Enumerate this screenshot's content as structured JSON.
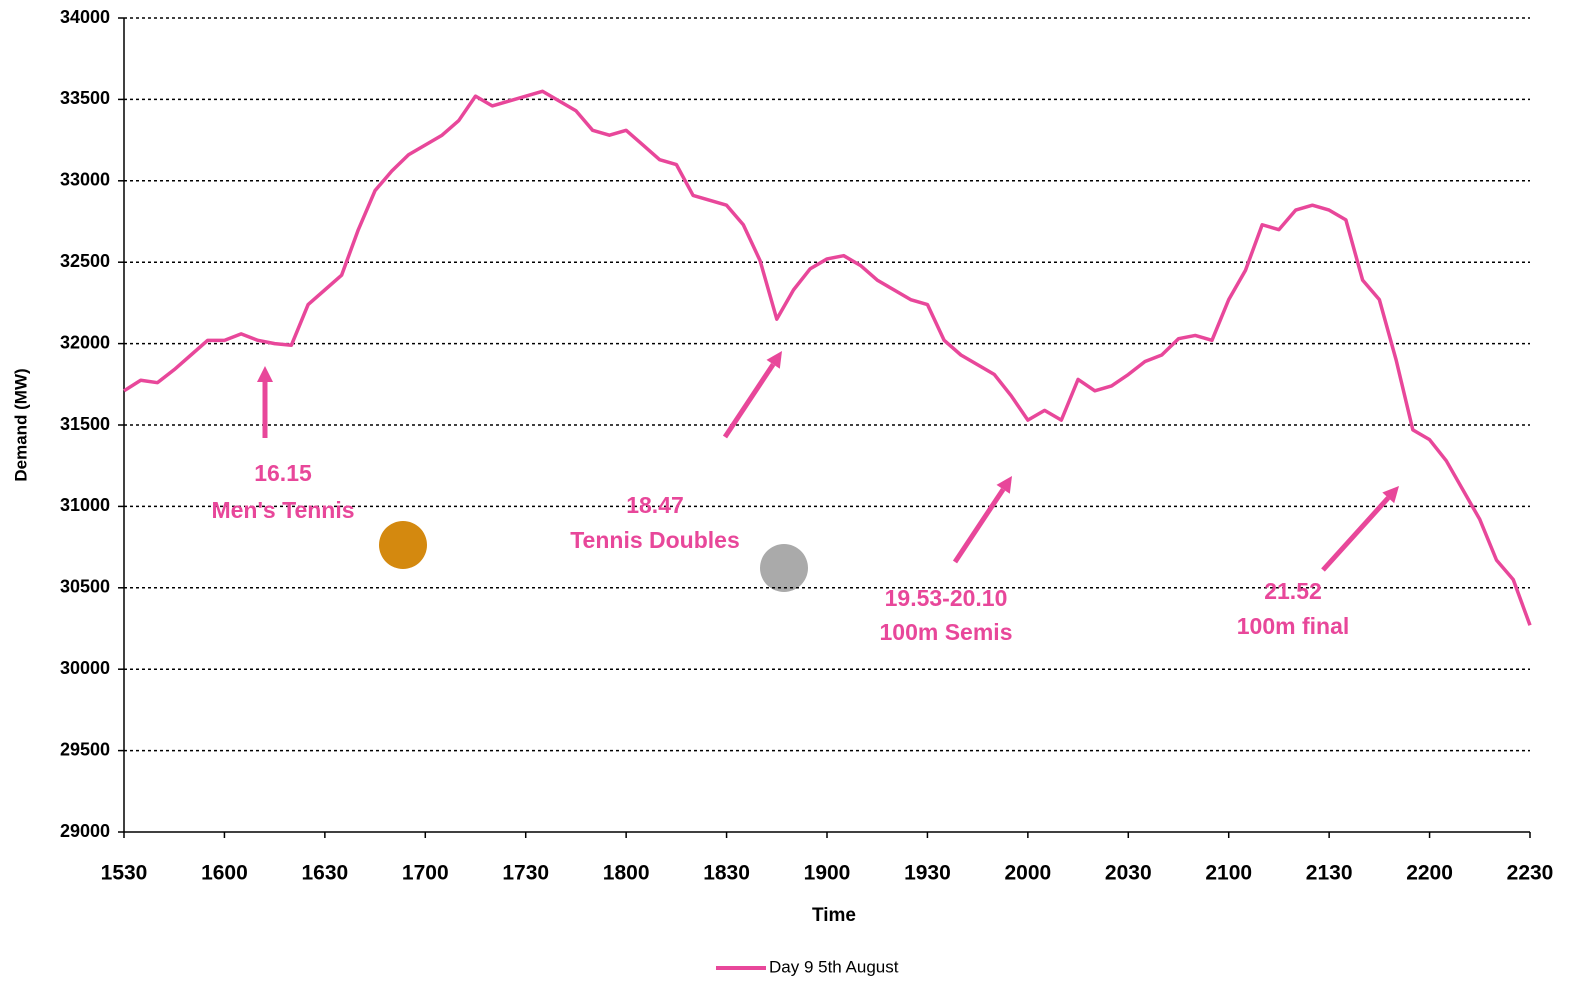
{
  "chart_data": {
    "type": "line",
    "x_label": "Time",
    "y_label": "Demand (MW)",
    "x": [
      930,
      935,
      940,
      945,
      950,
      955,
      960,
      965,
      970,
      975,
      980,
      985,
      990,
      995,
      1000,
      1005,
      1010,
      1015,
      1020,
      1025,
      1030,
      1035,
      1040,
      1045,
      1050,
      1055,
      1060,
      1065,
      1070,
      1075,
      1080,
      1085,
      1090,
      1095,
      1100,
      1105,
      1110,
      1115,
      1120,
      1125,
      1130,
      1135,
      1140,
      1145,
      1150,
      1155,
      1160,
      1165,
      1170,
      1175,
      1180,
      1185,
      1190,
      1195,
      1200,
      1205,
      1210,
      1215,
      1220,
      1225,
      1230,
      1235,
      1240,
      1245,
      1250,
      1255,
      1260,
      1265,
      1270,
      1275,
      1280,
      1285,
      1290,
      1295,
      1300,
      1305,
      1310,
      1315,
      1320,
      1325,
      1330,
      1335,
      1340,
      1345,
      1350
    ],
    "series": [
      {
        "name": "Day 9 5th August",
        "color": "#e8479a",
        "values": [
          31710,
          31775,
          31760,
          31840,
          31930,
          32020,
          32020,
          32060,
          32020,
          32000,
          31990,
          32240,
          32330,
          32420,
          32700,
          32940,
          33060,
          33160,
          33220,
          33280,
          33370,
          33520,
          33460,
          33490,
          33520,
          33550,
          33490,
          33430,
          33310,
          33280,
          33310,
          33220,
          33130,
          33100,
          32910,
          32880,
          32850,
          32730,
          32510,
          32150,
          32330,
          32460,
          32520,
          32540,
          32480,
          32390,
          32330,
          32270,
          32240,
          32020,
          31930,
          31870,
          31810,
          31680,
          31530,
          31590,
          31530,
          31780,
          31710,
          31740,
          31810,
          31890,
          31930,
          32030,
          32050,
          32020,
          32270,
          32450,
          32730,
          32700,
          32820,
          32850,
          32820,
          32760,
          32390,
          32270,
          31900,
          31470,
          31410,
          31280,
          31100,
          30920,
          30670,
          30550,
          30270
        ]
      }
    ],
    "xlim": [
      930,
      1350
    ],
    "xticks": [
      {
        "value": 930,
        "label": "1530"
      },
      {
        "value": 960,
        "label": "1600"
      },
      {
        "value": 990,
        "label": "1630"
      },
      {
        "value": 1020,
        "label": "1700"
      },
      {
        "value": 1050,
        "label": "1730"
      },
      {
        "value": 1080,
        "label": "1800"
      },
      {
        "value": 1110,
        "label": "1830"
      },
      {
        "value": 1140,
        "label": "1900"
      },
      {
        "value": 1170,
        "label": "1930"
      },
      {
        "value": 1200,
        "label": "2000"
      },
      {
        "value": 1230,
        "label": "2030"
      },
      {
        "value": 1260,
        "label": "2100"
      },
      {
        "value": 1290,
        "label": "2130"
      },
      {
        "value": 1320,
        "label": "2200"
      },
      {
        "value": 1350,
        "label": "2230"
      }
    ],
    "ylim": [
      29000,
      34000
    ],
    "yticks": [
      29000,
      29500,
      30000,
      30500,
      31000,
      31500,
      32000,
      32500,
      33000,
      33500,
      34000
    ],
    "grid": true,
    "annotations": [
      {
        "lines": [
          "16.15",
          "Men's Tennis"
        ]
      },
      {
        "lines": [
          "18.47",
          "Tennis Doubles"
        ]
      },
      {
        "lines": [
          "19.53-20.10",
          "100m Semis"
        ]
      },
      {
        "lines": [
          "21.52",
          "100m final"
        ]
      }
    ]
  }
}
